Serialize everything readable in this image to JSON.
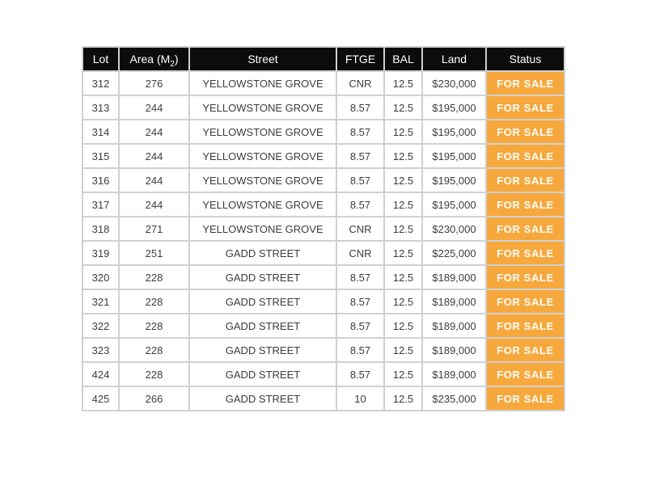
{
  "colors": {
    "page-bg": "#ffffff",
    "header-bg": "#0c0c0c",
    "header-text": "#ffffff",
    "status-bg": "#f7a83c",
    "status-text": "#ffffff",
    "cell-border": "#d0d0d0",
    "body-text": "#3c3c3c"
  },
  "header": {
    "lot": "Lot",
    "area_prefix": "Area (M",
    "area_sub": "2",
    "area_suffix": ")",
    "street": "Street",
    "ftge": "FTGE",
    "bal": "BAL",
    "land": "Land",
    "status": "Status"
  },
  "chart_data": {
    "type": "table",
    "columns": [
      "Lot",
      "Area (M2)",
      "Street",
      "FTGE",
      "BAL",
      "Land",
      "Status"
    ],
    "rows": [
      {
        "lot": "312",
        "area": "276",
        "street": "YELLOWSTONE GROVE",
        "ftge": "CNR",
        "bal": "12.5",
        "land": "$230,000",
        "status": "FOR SALE"
      },
      {
        "lot": "313",
        "area": "244",
        "street": "YELLOWSTONE GROVE",
        "ftge": "8.57",
        "bal": "12.5",
        "land": "$195,000",
        "status": "FOR SALE"
      },
      {
        "lot": "314",
        "area": "244",
        "street": "YELLOWSTONE GROVE",
        "ftge": "8.57",
        "bal": "12.5",
        "land": "$195,000",
        "status": "FOR SALE"
      },
      {
        "lot": "315",
        "area": "244",
        "street": "YELLOWSTONE GROVE",
        "ftge": "8.57",
        "bal": "12.5",
        "land": "$195,000",
        "status": "FOR SALE"
      },
      {
        "lot": "316",
        "area": "244",
        "street": "YELLOWSTONE GROVE",
        "ftge": "8.57",
        "bal": "12.5",
        "land": "$195,000",
        "status": "FOR SALE"
      },
      {
        "lot": "317",
        "area": "244",
        "street": "YELLOWSTONE GROVE",
        "ftge": "8.57",
        "bal": "12.5",
        "land": "$195,000",
        "status": "FOR SALE"
      },
      {
        "lot": "318",
        "area": "271",
        "street": "YELLOWSTONE GROVE",
        "ftge": "CNR",
        "bal": "12.5",
        "land": "$230,000",
        "status": "FOR SALE"
      },
      {
        "lot": "319",
        "area": "251",
        "street": "GADD STREET",
        "ftge": "CNR",
        "bal": "12.5",
        "land": "$225,000",
        "status": "FOR SALE"
      },
      {
        "lot": "320",
        "area": "228",
        "street": "GADD STREET",
        "ftge": "8.57",
        "bal": "12.5",
        "land": "$189,000",
        "status": "FOR SALE"
      },
      {
        "lot": "321",
        "area": "228",
        "street": "GADD STREET",
        "ftge": "8.57",
        "bal": "12.5",
        "land": "$189,000",
        "status": "FOR SALE"
      },
      {
        "lot": "322",
        "area": "228",
        "street": "GADD STREET",
        "ftge": "8.57",
        "bal": "12.5",
        "land": "$189,000",
        "status": "FOR SALE"
      },
      {
        "lot": "323",
        "area": "228",
        "street": "GADD STREET",
        "ftge": "8.57",
        "bal": "12.5",
        "land": "$189,000",
        "status": "FOR SALE"
      },
      {
        "lot": "424",
        "area": "228",
        "street": "GADD STREET",
        "ftge": "8.57",
        "bal": "12.5",
        "land": "$189,000",
        "status": "FOR SALE"
      },
      {
        "lot": "425",
        "area": "266",
        "street": "GADD STREET",
        "ftge": "10",
        "bal": "12.5",
        "land": "$235,000",
        "status": "FOR SALE"
      }
    ]
  }
}
